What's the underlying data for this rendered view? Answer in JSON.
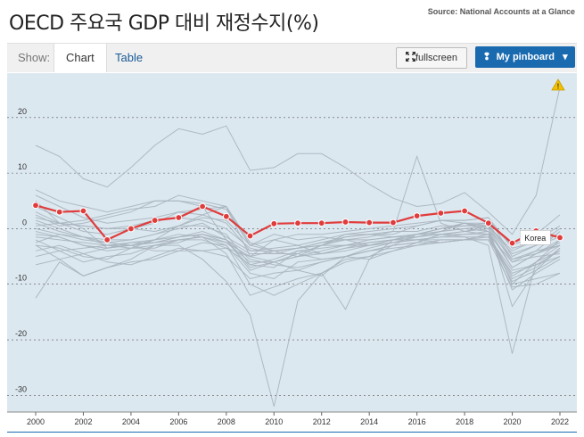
{
  "header": {
    "title": "OECD 주요국 GDP 대비 재정수지(%)",
    "source": "Source: National Accounts at a Glance"
  },
  "toolbar": {
    "show_label": "Show:",
    "tab_chart": "Chart",
    "tab_table": "Table",
    "fullscreen_label": "fullscreen",
    "pinboard_label": "My pinboard",
    "fullscreen_icon": "expand-icon",
    "pin_icon": "pin-icon",
    "dropdown_icon": "caret-down-icon"
  },
  "colors": {
    "plot_bg": "#dce8f0",
    "background_lines": "#a8b4be",
    "highlight": "#e03c3c",
    "tab_link": "#1a5a96",
    "pin_button": "#1a6ab0"
  },
  "chart_data": {
    "type": "line",
    "title": "OECD 주요국 GDP 대비 재정수지(%)",
    "xlabel": "",
    "ylabel": "",
    "xlim": [
      2000,
      2022
    ],
    "ylim": [
      -33,
      28
    ],
    "x_ticks": [
      "2000",
      "2002",
      "2004",
      "2006",
      "2008",
      "2010",
      "2012",
      "2014",
      "2016",
      "2018",
      "2020",
      "2022"
    ],
    "y_ticks": [
      "20",
      "10",
      "0",
      "-10",
      "-20",
      "-30"
    ],
    "highlight": {
      "name": "Korea",
      "x": [
        2000,
        2001,
        2002,
        2003,
        2004,
        2005,
        2006,
        2007,
        2008,
        2009,
        2010,
        2011,
        2012,
        2013,
        2014,
        2015,
        2016,
        2017,
        2018,
        2019,
        2020,
        2021,
        2022
      ],
      "values": [
        4.2,
        3.0,
        3.2,
        -2.0,
        0.0,
        1.5,
        2.0,
        4.0,
        2.2,
        -1.3,
        0.9,
        1.0,
        1.0,
        1.2,
        1.1,
        1.1,
        2.3,
        2.8,
        3.2,
        1.0,
        -2.6,
        -0.4,
        -1.6
      ]
    },
    "background_series": [
      {
        "values": [
          15,
          13,
          9,
          7.5,
          11,
          15,
          18,
          17,
          18.5,
          10.5,
          11,
          13.5,
          13.5,
          11,
          8,
          5.5,
          4,
          4.5,
          6.5,
          3,
          -1,
          6,
          25.5
        ]
      },
      {
        "values": [
          -12.5,
          -6,
          -8.5,
          -7,
          -5.5,
          -3,
          -3,
          -5.5,
          -9.5,
          -15.5,
          -32,
          -13,
          -8,
          -5.5,
          -5,
          -3,
          -1,
          -1,
          -1.5,
          -3,
          -22.5,
          -6,
          -3
        ]
      },
      {
        "values": [
          2.5,
          0.5,
          1,
          2,
          3,
          5,
          5,
          4,
          -2,
          -7.5,
          -6,
          -4.5,
          -3,
          -1,
          -1,
          -1.5,
          -1,
          0,
          1,
          -0.5,
          -10,
          -6,
          -2
        ]
      },
      {
        "values": [
          5,
          1,
          1.5,
          2.5,
          3.5,
          4,
          6,
          5,
          4,
          -2.5,
          -4,
          -5,
          -3,
          -2,
          -1.5,
          -0.5,
          13,
          1,
          -0.5,
          0.5,
          -14,
          -7.5,
          -3.5
        ]
      },
      {
        "values": [
          -3,
          -5.5,
          -8.5,
          -7,
          -6,
          -5.5,
          -4,
          -2.5,
          -3,
          -8,
          -9,
          -6,
          -5.5,
          -5,
          -4,
          -3.5,
          -3,
          -2,
          -2,
          -2,
          -10.5,
          -10,
          -8
        ]
      },
      {
        "values": [
          0,
          -1,
          -2,
          -2.5,
          -2,
          -1,
          0.5,
          0.5,
          -1,
          -6.5,
          -7,
          -4,
          -3.5,
          -3,
          -2.5,
          -2,
          -1.5,
          -0.5,
          0,
          -0.5,
          -7,
          -4.5,
          -3
        ]
      },
      {
        "values": [
          -2,
          -4,
          -6,
          -5,
          -4.5,
          -3,
          -2,
          -1.5,
          -3,
          -10,
          -12,
          -10,
          -8,
          -6,
          -5,
          -4,
          -3,
          -2.5,
          -2,
          -1,
          -8.5,
          -6,
          -4
        ]
      },
      {
        "values": [
          1.5,
          0,
          -1.5,
          -3,
          -3.5,
          -3,
          -2.5,
          -1,
          -2,
          -7,
          -6,
          -5,
          -4,
          -3,
          -2,
          -1.5,
          -1.5,
          -1,
          -0.5,
          -1,
          -9,
          -7,
          -3.5
        ]
      },
      {
        "values": [
          -1,
          -1.5,
          -3,
          -4,
          -3.5,
          -3.5,
          -2,
          -1.5,
          -2.5,
          -5,
          -4,
          -3.5,
          -3,
          -3,
          -3,
          -2.5,
          -2,
          -2.5,
          -2,
          -1.5,
          -9.5,
          -7.5,
          -5
        ]
      },
      {
        "values": [
          3,
          1,
          -0.5,
          -1,
          0,
          1,
          3,
          2.5,
          1,
          -4,
          -4,
          -3.5,
          -3,
          -1.5,
          -1,
          -1,
          0.5,
          1.5,
          1,
          0.5,
          -6,
          -4,
          -0.5
        ]
      },
      {
        "values": [
          7,
          5,
          4,
          3,
          4,
          5,
          5,
          4.5,
          3.5,
          -3,
          -2,
          -1,
          -1,
          -0.5,
          0,
          0.5,
          1,
          1.5,
          1.5,
          2,
          -5,
          -3,
          0
        ]
      },
      {
        "values": [
          -4,
          -3,
          -4.5,
          -6,
          -6.5,
          -5,
          -3.5,
          -4,
          -5,
          -9,
          -8,
          -7.5,
          -6,
          -5,
          -4,
          -3,
          -2.5,
          -2.5,
          -2,
          -2,
          -8,
          -6.5,
          -4
        ]
      },
      {
        "values": [
          -1.5,
          -2,
          -2.5,
          -3,
          -3,
          -2.5,
          -1.5,
          -0.5,
          -2,
          -5.5,
          -6.5,
          -7,
          -6,
          -5,
          -3.5,
          -2.5,
          -1.5,
          -0.5,
          0,
          0.5,
          -4.5,
          -3,
          -1.5
        ]
      },
      {
        "values": [
          0.5,
          1,
          0.5,
          0,
          0.5,
          1.5,
          2,
          1.5,
          0,
          -3.5,
          -4.5,
          -3.5,
          -2.5,
          -2,
          -2,
          -1.5,
          -1,
          0,
          1,
          1,
          -5.5,
          -4.5,
          -2
        ]
      },
      {
        "values": [
          -6.5,
          -5.5,
          -4.5,
          -3.5,
          -2.5,
          -2,
          -1.5,
          -1,
          -2.5,
          -6,
          -6,
          -5,
          -4.5,
          -3.5,
          -3,
          -2.5,
          -2,
          -1.5,
          -1.5,
          -1.5,
          -7.5,
          -6.5,
          -5
        ]
      },
      {
        "values": [
          6,
          4,
          2,
          1,
          1.5,
          2,
          3,
          3.5,
          4,
          -5,
          -2,
          -3,
          -4.5,
          -4,
          -3,
          -2,
          -1,
          0,
          0.5,
          0.5,
          -4,
          -2,
          0.5
        ]
      },
      {
        "values": [
          -3,
          -3.5,
          -5,
          -5.5,
          -3.5,
          -2,
          -1,
          -1.5,
          -4.5,
          -12,
          -10.5,
          -9,
          -8,
          -14.5,
          -5.5,
          -4,
          -2.5,
          -1,
          -1,
          -0.5,
          -10,
          -9,
          -8
        ]
      },
      {
        "values": [
          1,
          -0.5,
          -1.5,
          -2,
          -2,
          -1,
          0,
          1,
          -1.5,
          -4,
          -3.5,
          -3,
          -2,
          -1,
          -0.5,
          0,
          0.5,
          1.5,
          1.5,
          2,
          -3.5,
          -2.5,
          -1
        ]
      },
      {
        "values": [
          -2.5,
          -1,
          -1.5,
          -2.5,
          -3,
          -4,
          -4,
          -4,
          -3.5,
          -5,
          -6,
          -7.5,
          -8.5,
          -5,
          -5.5,
          -2,
          -2,
          -2,
          -2,
          -1,
          -11,
          -8,
          -5.5
        ]
      },
      {
        "values": [
          4,
          2,
          0,
          -3.5,
          -3,
          -2,
          0.5,
          2.5,
          4,
          -3,
          -1,
          -2,
          -1.5,
          -2,
          -3,
          -2,
          -1,
          -0.5,
          1,
          0,
          -5.5,
          -4,
          -3
        ]
      },
      {
        "values": [
          -0.5,
          -1.5,
          -3,
          -3.5,
          -3,
          -2.5,
          -2,
          -2,
          -3.5,
          -6.5,
          -5.5,
          -4,
          -4.5,
          -3.5,
          -2.5,
          -2,
          -2,
          -1.5,
          -1,
          -1,
          -6,
          -5,
          -4.5
        ]
      },
      {
        "values": [
          -5,
          -4,
          -3.5,
          -3,
          -2.5,
          -2.5,
          -1.5,
          -1,
          -2,
          -4.5,
          -4.5,
          -4.5,
          -5.5,
          -5,
          -4,
          -3,
          -2.5,
          -1,
          -0.5,
          0,
          -7,
          -4.5,
          -2.5
        ]
      },
      {
        "values": [
          2,
          1,
          0.5,
          0,
          0,
          -0.5,
          0.5,
          2,
          1.5,
          -3,
          -4,
          -3.5,
          -2.5,
          -1.5,
          -1,
          -0.5,
          -0.5,
          0.5,
          0.5,
          1,
          -3,
          -1,
          2.5
        ]
      }
    ],
    "annotations": [
      {
        "text": "Korea",
        "x": 2021,
        "y": -1.6
      }
    ]
  }
}
